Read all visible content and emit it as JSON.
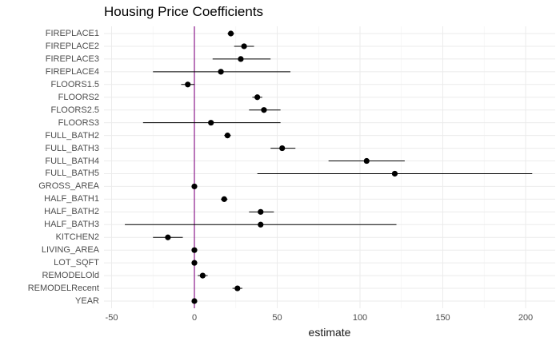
{
  "chart_data": {
    "type": "scatter",
    "title": "Housing Price Coefficients",
    "xlabel": "estimate",
    "ylabel": "",
    "xlim": [
      -50,
      210
    ],
    "xticks": [
      -50,
      0,
      50,
      100,
      150,
      200
    ],
    "grid": true,
    "reference_line": {
      "x": 0,
      "color": "#8b1a8b"
    },
    "points": [
      {
        "term": "FIREPLACE1",
        "estimate": 22,
        "low": 20,
        "high": 24
      },
      {
        "term": "FIREPLACE2",
        "estimate": 30,
        "low": 24,
        "high": 36
      },
      {
        "term": "FIREPLACE3",
        "estimate": 28,
        "low": 11,
        "high": 46
      },
      {
        "term": "FIREPLACE4",
        "estimate": 16,
        "low": -25,
        "high": 58
      },
      {
        "term": "FLOORS1.5",
        "estimate": -4,
        "low": -8,
        "high": 0
      },
      {
        "term": "FLOORS2",
        "estimate": 38,
        "low": 35,
        "high": 41
      },
      {
        "term": "FLOORS2.5",
        "estimate": 42,
        "low": 33,
        "high": 52
      },
      {
        "term": "FLOORS3",
        "estimate": 10,
        "low": -31,
        "high": 52
      },
      {
        "term": "FULL_BATH2",
        "estimate": 20,
        "low": 18,
        "high": 22
      },
      {
        "term": "FULL_BATH3",
        "estimate": 53,
        "low": 46,
        "high": 61
      },
      {
        "term": "FULL_BATH4",
        "estimate": 104,
        "low": 81,
        "high": 127
      },
      {
        "term": "FULL_BATH5",
        "estimate": 121,
        "low": 38,
        "high": 204
      },
      {
        "term": "GROSS_AREA",
        "estimate": 0,
        "low": -0.5,
        "high": 0.5
      },
      {
        "term": "HALF_BATH1",
        "estimate": 18,
        "low": 16,
        "high": 20
      },
      {
        "term": "HALF_BATH2",
        "estimate": 40,
        "low": 33,
        "high": 48
      },
      {
        "term": "HALF_BATH3",
        "estimate": 40,
        "low": -42,
        "high": 122
      },
      {
        "term": "KITCHEN2",
        "estimate": -16,
        "low": -25,
        "high": -7
      },
      {
        "term": "LIVING_AREA",
        "estimate": 0,
        "low": -0.5,
        "high": 0.5
      },
      {
        "term": "LOT_SQFT",
        "estimate": 0,
        "low": -0.5,
        "high": 0.5
      },
      {
        "term": "REMODELOld",
        "estimate": 5,
        "low": 2,
        "high": 8
      },
      {
        "term": "REMODELRecent",
        "estimate": 26,
        "low": 23,
        "high": 29
      },
      {
        "term": "YEAR",
        "estimate": 0,
        "low": -0.5,
        "high": 0.5
      }
    ]
  }
}
